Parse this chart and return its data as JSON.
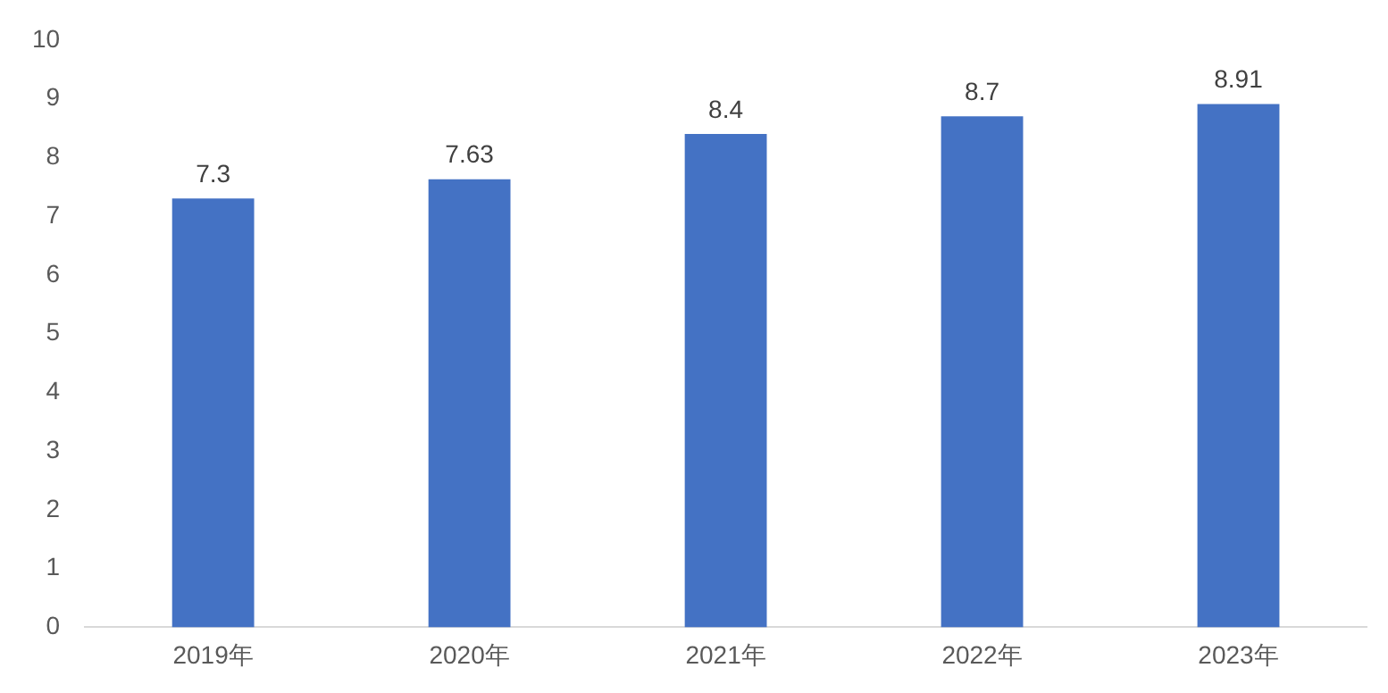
{
  "chart_data": {
    "type": "bar",
    "categories": [
      "2019年",
      "2020年",
      "2021年",
      "2022年",
      "2023年"
    ],
    "values": [
      7.3,
      7.63,
      8.4,
      8.7,
      8.91
    ],
    "color": "#4472c4",
    "ylim": [
      0,
      10
    ],
    "yticks": [
      0,
      1,
      2,
      3,
      4,
      5,
      6,
      7,
      8,
      9,
      10
    ],
    "grid": false,
    "legend": false,
    "data_labels": true
  }
}
